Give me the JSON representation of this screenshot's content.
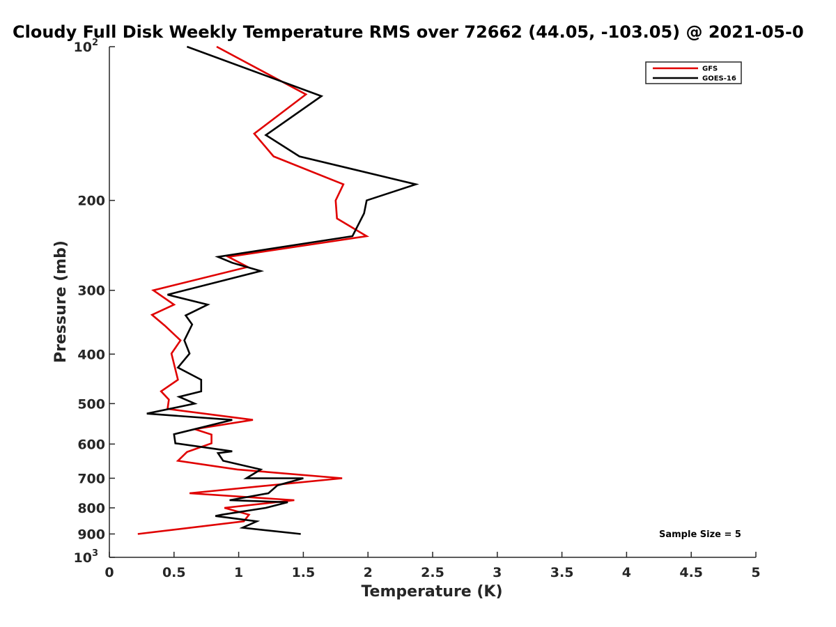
{
  "chart_data": {
    "type": "line",
    "title": "Cloudy Full Disk Weekly Temperature RMS over 72662 (44.05, -103.05) @ 2021-05-0",
    "xlabel": "Temperature (K)",
    "ylabel": "Pressure (mb)",
    "xlim": [
      0,
      5
    ],
    "ylim": [
      1000,
      100
    ],
    "y_scale": "log",
    "y_reversed": true,
    "grid": false,
    "legend_position": "top-right",
    "x_ticks": [
      0,
      0.5,
      1,
      1.5,
      2,
      2.5,
      3,
      3.5,
      4,
      4.5,
      5
    ],
    "x_tick_labels": [
      "0",
      "0.5",
      "1",
      "1.5",
      "2",
      "2.5",
      "3",
      "3.5",
      "4",
      "4.5",
      "5"
    ],
    "y_ticks": [
      100,
      200,
      300,
      400,
      500,
      600,
      700,
      800,
      900,
      1000
    ],
    "y_tick_labels": [
      "10^2",
      "200",
      "300",
      "400",
      "500",
      "600",
      "700",
      "800",
      "900",
      "10^3"
    ],
    "annotation": "Sample Size = 5",
    "series": [
      {
        "name": "GFS",
        "color": "#e00000",
        "points": [
          [
            0.83,
            100
          ],
          [
            1.52,
            124
          ],
          [
            1.12,
            148
          ],
          [
            1.27,
            164
          ],
          [
            1.81,
            186
          ],
          [
            1.75,
            200
          ],
          [
            1.76,
            217
          ],
          [
            1.99,
            235
          ],
          [
            0.92,
            258
          ],
          [
            1.07,
            270
          ],
          [
            0.34,
            300
          ],
          [
            0.5,
            320
          ],
          [
            0.33,
            335
          ],
          [
            0.43,
            352
          ],
          [
            0.55,
            376
          ],
          [
            0.48,
            399
          ],
          [
            0.53,
            449
          ],
          [
            0.4,
            473
          ],
          [
            0.46,
            491
          ],
          [
            0.45,
            512
          ],
          [
            1.11,
            538
          ],
          [
            0.66,
            561
          ],
          [
            0.79,
            575
          ],
          [
            0.79,
            598
          ],
          [
            0.6,
            622
          ],
          [
            0.53,
            647
          ],
          [
            0.99,
            673
          ],
          [
            1.8,
            700
          ],
          [
            0.62,
            749
          ],
          [
            1.43,
            773
          ],
          [
            0.89,
            800
          ],
          [
            1.08,
            825
          ],
          [
            1.04,
            850
          ],
          [
            0.22,
            900
          ]
        ]
      },
      {
        "name": "GOES-16",
        "color": "#000000",
        "points": [
          [
            0.6,
            100
          ],
          [
            1.64,
            125
          ],
          [
            1.21,
            149
          ],
          [
            1.47,
            164
          ],
          [
            2.37,
            186
          ],
          [
            1.99,
            200
          ],
          [
            1.97,
            212
          ],
          [
            1.88,
            235
          ],
          [
            0.84,
            258
          ],
          [
            0.95,
            265
          ],
          [
            1.17,
            275
          ],
          [
            0.45,
            306
          ],
          [
            0.76,
            320
          ],
          [
            0.59,
            336
          ],
          [
            0.64,
            350
          ],
          [
            0.58,
            376
          ],
          [
            0.62,
            399
          ],
          [
            0.53,
            425
          ],
          [
            0.71,
            449
          ],
          [
            0.71,
            473
          ],
          [
            0.54,
            485
          ],
          [
            0.66,
            500
          ],
          [
            0.29,
            523
          ],
          [
            0.95,
            538
          ],
          [
            0.5,
            574
          ],
          [
            0.51,
            598
          ],
          [
            0.95,
            620
          ],
          [
            0.84,
            625
          ],
          [
            0.88,
            647
          ],
          [
            1.17,
            673
          ],
          [
            1.06,
            700
          ],
          [
            1.5,
            700
          ],
          [
            1.3,
            723
          ],
          [
            1.23,
            749
          ],
          [
            0.93,
            773
          ],
          [
            1.38,
            780
          ],
          [
            1.21,
            800
          ],
          [
            0.87,
            825
          ],
          [
            0.82,
            830
          ],
          [
            1.14,
            850
          ],
          [
            1.03,
            875
          ],
          [
            1.48,
            900
          ]
        ]
      }
    ]
  }
}
